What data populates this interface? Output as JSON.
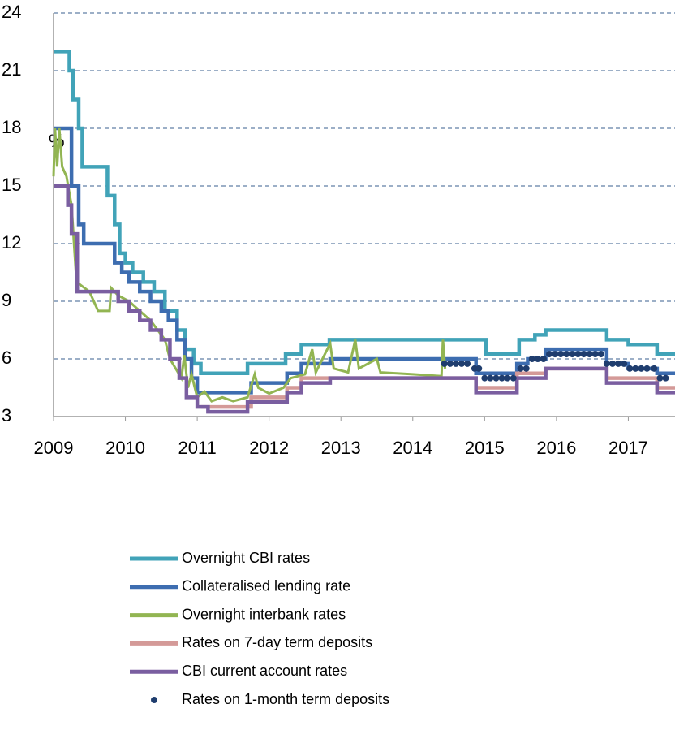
{
  "chart_data": {
    "type": "line",
    "y_unit": "%",
    "xlim": [
      2009,
      2017.65
    ],
    "xticks": [
      2009,
      2010,
      2011,
      2012,
      2013,
      2014,
      2015,
      2016,
      2017
    ],
    "ylim": [
      3,
      24
    ],
    "yticks": [
      3,
      6,
      9,
      12,
      15,
      18,
      21,
      24
    ],
    "grid": true,
    "series": [
      {
        "name": "Overnight CBI rates",
        "color": "#41a3b8",
        "mode": "step",
        "x": [
          2009,
          2009.22,
          2009.27,
          2009.35,
          2009.4,
          2009.75,
          2009.85,
          2009.92,
          2010.0,
          2010.1,
          2010.25,
          2010.4,
          2010.55,
          2010.72,
          2010.83,
          2010.95,
          2011.05,
          2011.7,
          2012.23,
          2012.45,
          2012.84,
          2015.02,
          2015.48,
          2015.7,
          2015.85,
          2016.7,
          2017.0,
          2017.4
        ],
        "values": [
          22,
          21,
          19.5,
          18,
          16,
          14.5,
          13,
          11.5,
          11,
          10.5,
          10,
          9.5,
          8.5,
          7.5,
          6.5,
          5.75,
          5.25,
          5.75,
          6.25,
          6.75,
          7,
          6.25,
          7,
          7.25,
          7.5,
          7,
          6.75,
          6.25
        ]
      },
      {
        "name": "Collateralised lending rate",
        "color": "#3d6db0",
        "mode": "step",
        "x": [
          2009,
          2009.25,
          2009.35,
          2009.42,
          2009.85,
          2009.95,
          2010.05,
          2010.2,
          2010.35,
          2010.5,
          2010.6,
          2010.72,
          2010.83,
          2010.92,
          2011.0,
          2011.75,
          2012.25,
          2012.45,
          2012.85,
          2014.88,
          2015.45,
          2015.6,
          2015.85,
          2016.7,
          2017.0,
          2017.4
        ],
        "values": [
          18,
          15,
          13,
          12,
          11,
          10.5,
          10,
          9.5,
          9,
          8.5,
          8,
          7,
          6,
          5,
          4.25,
          4.75,
          5.25,
          5.75,
          6,
          5.25,
          5.75,
          6,
          6.5,
          5.75,
          5.5,
          5.25
        ]
      },
      {
        "name": "Overnight interbank rates",
        "color": "#92b552",
        "mode": "line",
        "x": [
          2009,
          2009.02,
          2009.05,
          2009.08,
          2009.12,
          2009.18,
          2009.25,
          2009.32,
          2009.5,
          2009.62,
          2009.78,
          2009.8,
          2009.9,
          2010.05,
          2010.2,
          2010.35,
          2010.45,
          2010.55,
          2010.62,
          2010.7,
          2010.78,
          2010.82,
          2010.87,
          2010.92,
          2011.0,
          2011.1,
          2011.2,
          2011.35,
          2011.5,
          2011.7,
          2011.8,
          2011.85,
          2012.0,
          2012.2,
          2012.3,
          2012.5,
          2012.6,
          2012.65,
          2012.85,
          2012.9,
          2013.1,
          2013.2,
          2013.25,
          2013.5,
          2013.55,
          2014.0,
          2014.4,
          2014.42,
          2014.45
        ],
        "values": [
          15.5,
          18,
          16,
          18,
          16,
          15.5,
          14,
          10,
          9.5,
          8.5,
          8.5,
          9.7,
          9.3,
          9,
          8.5,
          8,
          7.5,
          7,
          6,
          5.5,
          5,
          6.2,
          4.5,
          5.2,
          4,
          4.3,
          3.8,
          4,
          3.8,
          4,
          5.2,
          4.5,
          4.2,
          4.5,
          5,
          5.2,
          6.5,
          5.3,
          6.8,
          5.5,
          5.3,
          7,
          5.5,
          6,
          5.3,
          5.2,
          5.1,
          7,
          5.5
        ]
      },
      {
        "name": "Rates on 7-day term deposits",
        "color": "#d49a98",
        "mode": "step",
        "x": [
          2011.05,
          2011.75,
          2012.25,
          2012.45,
          2014.88,
          2015.45,
          2015.85,
          2016.7,
          2017.4
        ],
        "values": [
          3.5,
          4,
          4.5,
          5,
          4.5,
          5.25,
          5.5,
          5,
          4.5
        ]
      },
      {
        "name": "CBI current account rates",
        "color": "#7a5ea0",
        "mode": "step",
        "x": [
          2009,
          2009.2,
          2009.25,
          2009.33,
          2009.9,
          2010.05,
          2010.2,
          2010.35,
          2010.5,
          2010.62,
          2010.75,
          2010.85,
          2011.0,
          2011.15,
          2011.7,
          2012.25,
          2012.45,
          2012.85,
          2014.88,
          2015.45,
          2015.85,
          2016.7,
          2017.4
        ],
        "values": [
          15,
          14,
          12.5,
          9.5,
          9,
          8.5,
          8,
          7.5,
          7,
          6,
          5,
          4,
          3.5,
          3.25,
          3.75,
          4.25,
          4.75,
          5,
          4.25,
          5,
          5.5,
          4.75,
          4.25
        ]
      },
      {
        "name": "Rates on 1-month term deposits",
        "color": "#1f3d6e",
        "mode": "markers",
        "x": [
          2014.44,
          2014.52,
          2014.6,
          2014.68,
          2014.76,
          2014.86,
          2014.92,
          2015.0,
          2015.08,
          2015.16,
          2015.24,
          2015.32,
          2015.4,
          2015.5,
          2015.58,
          2015.66,
          2015.74,
          2015.82,
          2015.9,
          2015.98,
          2016.06,
          2016.14,
          2016.22,
          2016.3,
          2016.38,
          2016.46,
          2016.54,
          2016.62,
          2016.7,
          2016.78,
          2016.86,
          2016.94,
          2017.02,
          2017.1,
          2017.18,
          2017.26,
          2017.36,
          2017.44,
          2017.52
        ],
        "values": [
          5.75,
          5.75,
          5.75,
          5.75,
          5.75,
          5.5,
          5.5,
          5,
          5,
          5,
          5,
          5,
          5,
          5.5,
          5.5,
          6,
          6,
          6,
          6.25,
          6.25,
          6.25,
          6.25,
          6.25,
          6.25,
          6.25,
          6.25,
          6.25,
          6.25,
          5.75,
          5.75,
          5.75,
          5.75,
          5.5,
          5.5,
          5.5,
          5.5,
          5.5,
          5,
          5
        ]
      }
    ]
  }
}
